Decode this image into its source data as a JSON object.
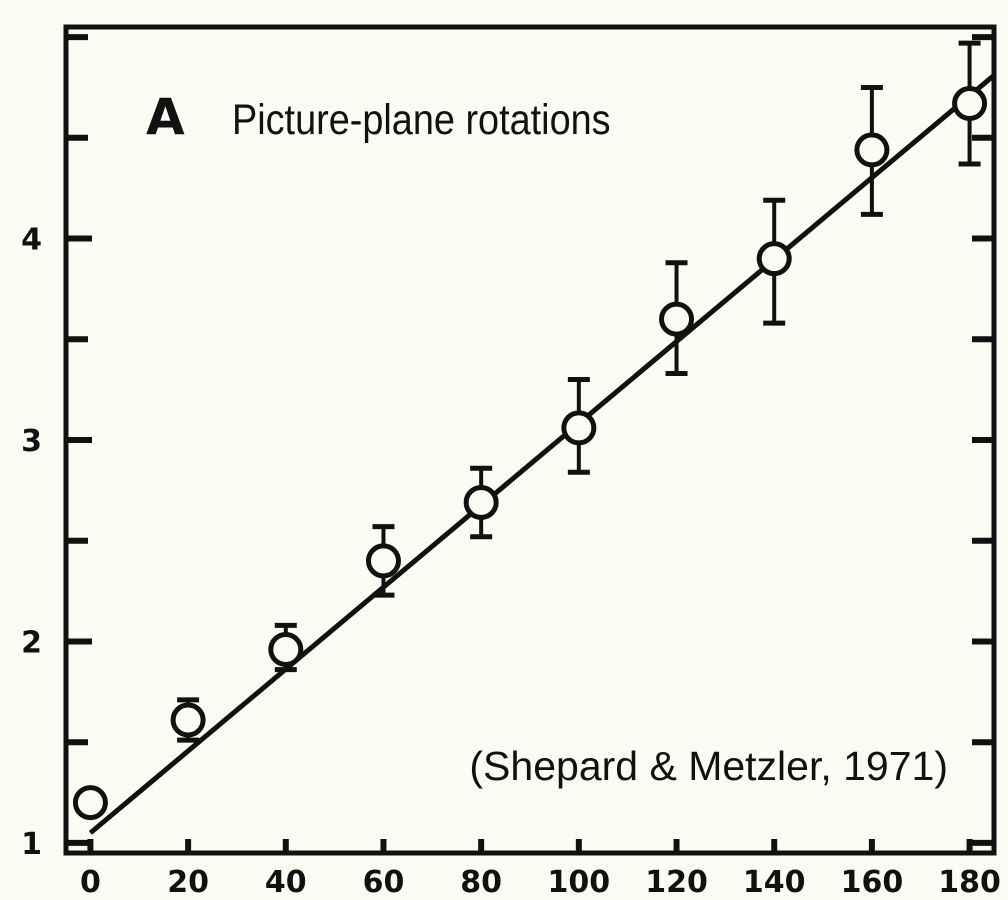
{
  "chart_data": {
    "type": "scatter",
    "panel_label": "A",
    "title": "Picture-plane rotations",
    "annotation": "(Shepard & Metzler, 1971)",
    "xlabel": "",
    "ylabel": "",
    "x_ticks": [
      0,
      20,
      40,
      60,
      80,
      100,
      120,
      140,
      160,
      180
    ],
    "x_tick_labels": [
      "0",
      "20",
      "40",
      "60",
      "80",
      "100",
      "120",
      "140",
      "160",
      "180"
    ],
    "y_ticks": [
      1,
      2,
      3,
      4
    ],
    "y_tick_labels": [
      "1",
      "2",
      "3",
      "4"
    ],
    "xlim": [
      -5,
      185
    ],
    "ylim": [
      0.95,
      5.05
    ],
    "grid": false,
    "series": [
      {
        "marker": "open-circle",
        "x": [
          0,
          20,
          40,
          60,
          80,
          100,
          120,
          140,
          160,
          180
        ],
        "y": [
          1.2,
          1.61,
          1.96,
          2.4,
          2.69,
          3.06,
          3.6,
          3.9,
          4.44,
          4.67
        ],
        "error_low": [
          1.2,
          1.51,
          1.86,
          2.23,
          2.52,
          2.84,
          3.33,
          3.58,
          4.12,
          4.37
        ],
        "error_high": [
          1.2,
          1.71,
          2.08,
          2.57,
          2.86,
          3.3,
          3.88,
          4.19,
          4.75,
          4.97
        ]
      }
    ],
    "fit_line": {
      "x": [
        0,
        185
      ],
      "y": [
        1.05,
        4.81
      ]
    },
    "colors": {
      "background": "#fbfaf3",
      "ink": "#111111"
    }
  }
}
